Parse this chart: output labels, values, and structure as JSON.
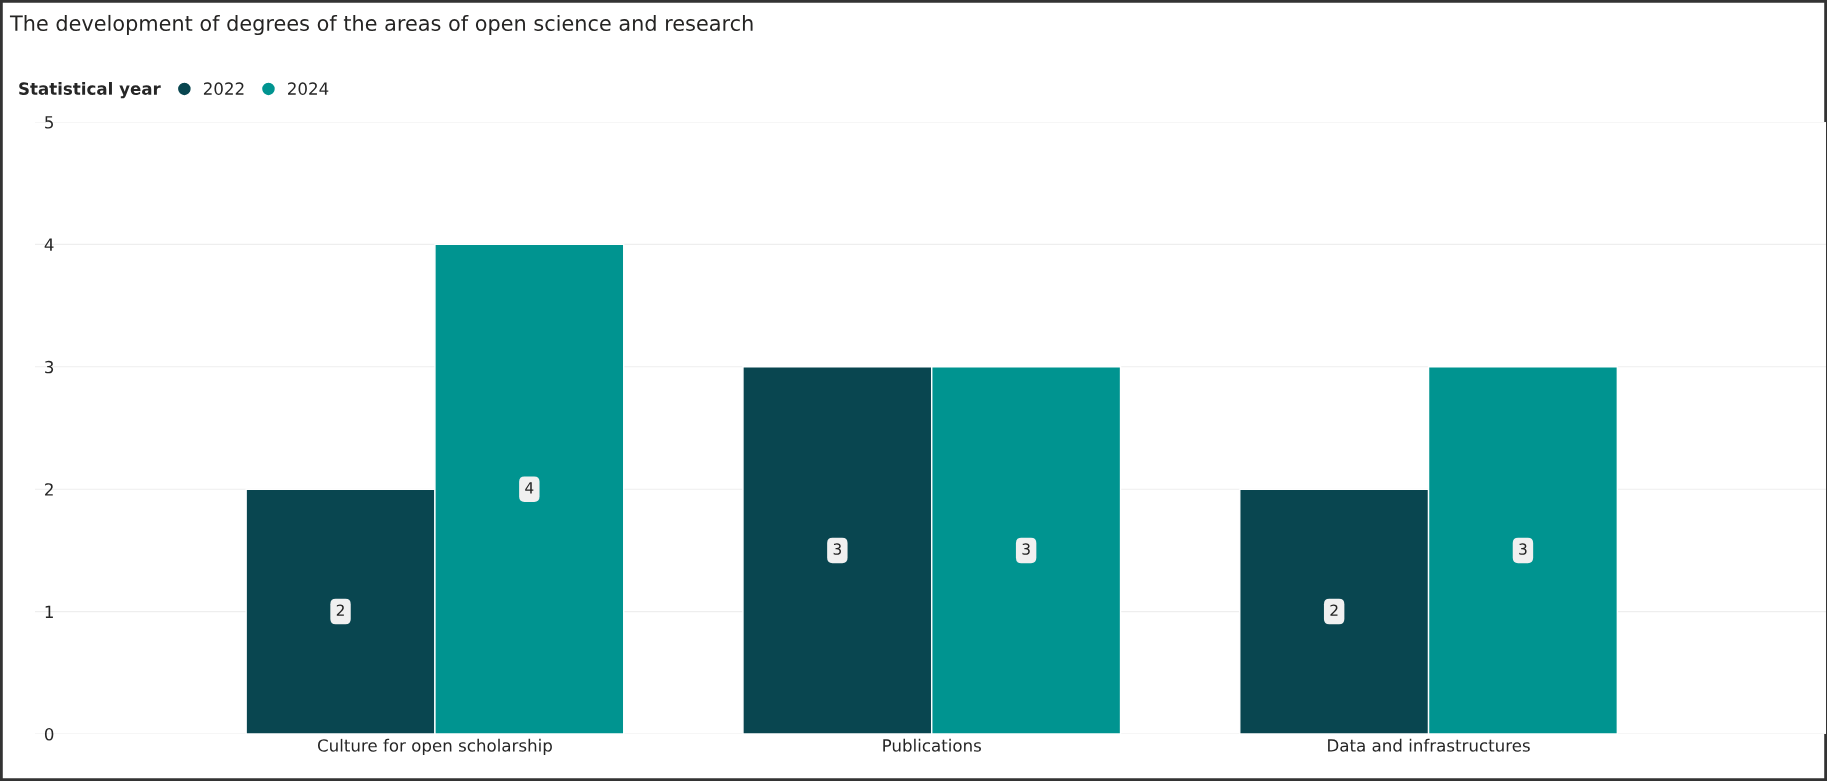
{
  "chart_data": {
    "type": "bar",
    "title": "The development of degrees of the areas of open science and research",
    "legend_title": "Statistical year",
    "legend": "top left",
    "categories": [
      "Culture for open scholarship",
      "Publications",
      "Data and infrastructures"
    ],
    "series": [
      {
        "name": "2022",
        "color": "#094650",
        "values": [
          2,
          3,
          2
        ]
      },
      {
        "name": "2024",
        "color": "#009490",
        "values": [
          4,
          3,
          3
        ]
      }
    ],
    "ylim": [
      0,
      5
    ],
    "yticks": [
      0,
      1,
      2,
      3,
      4,
      5
    ],
    "grid": "y",
    "data_labels": true
  }
}
